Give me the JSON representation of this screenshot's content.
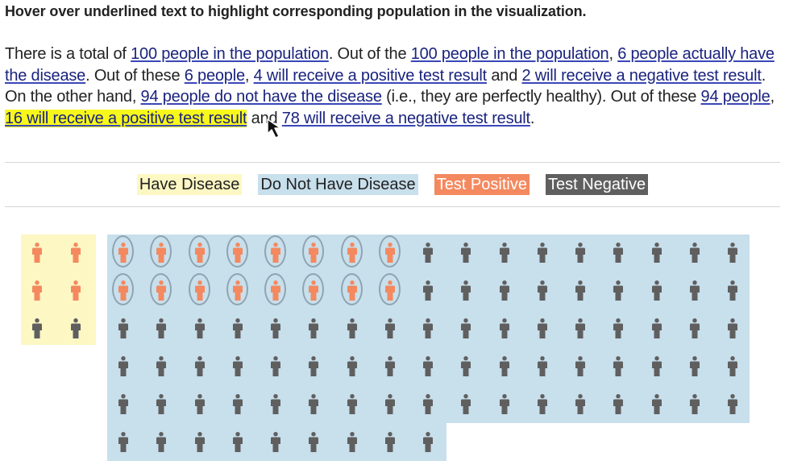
{
  "instruction": "Hover over underlined text to highlight corresponding population in the visualization.",
  "paragraph": [
    {
      "t": "There is a total of "
    },
    {
      "t": "100 people in the population",
      "link": true
    },
    {
      "t": ". Out of the "
    },
    {
      "t": "100 people in the population",
      "link": true
    },
    {
      "t": ", "
    },
    {
      "t": "6 people actually have the disease",
      "link": true
    },
    {
      "t": ". Out of these "
    },
    {
      "t": "6 people",
      "link": true
    },
    {
      "t": ", "
    },
    {
      "t": "4 will receive a positive test result",
      "link": true
    },
    {
      "t": " and "
    },
    {
      "t": "2 will receive a negative test result",
      "link": true
    },
    {
      "t": ". On the other hand, "
    },
    {
      "t": "94 people do not have the disease",
      "link": true
    },
    {
      "t": " (i.e., they are perfectly healthy). Out of these "
    },
    {
      "t": "94 people",
      "link": true
    },
    {
      "t": ", "
    },
    {
      "t": "16 will receive a positive test result",
      "link": true,
      "active": true
    },
    {
      "t": " and "
    },
    {
      "t": "78 will receive a negative test result",
      "link": true
    },
    {
      "t": "."
    }
  ],
  "legend": {
    "have_disease": "Have Disease",
    "no_disease": "Do Not Have Disease",
    "test_positive": "Test Positive",
    "test_negative": "Test Negative"
  },
  "colors": {
    "have_disease_bg": "#fdf7c3",
    "no_disease_bg": "#c8dfec",
    "positive": "#f4895f",
    "negative": "#5f5f5f",
    "highlight": "#f7f71c",
    "ring": "#8fa4b2"
  },
  "population": {
    "total": 100,
    "disease": {
      "count": 6,
      "positive": 4,
      "negative": 2
    },
    "no_disease": {
      "count": 94,
      "positive": 16,
      "negative": 78,
      "positive_highlighted": true
    }
  }
}
